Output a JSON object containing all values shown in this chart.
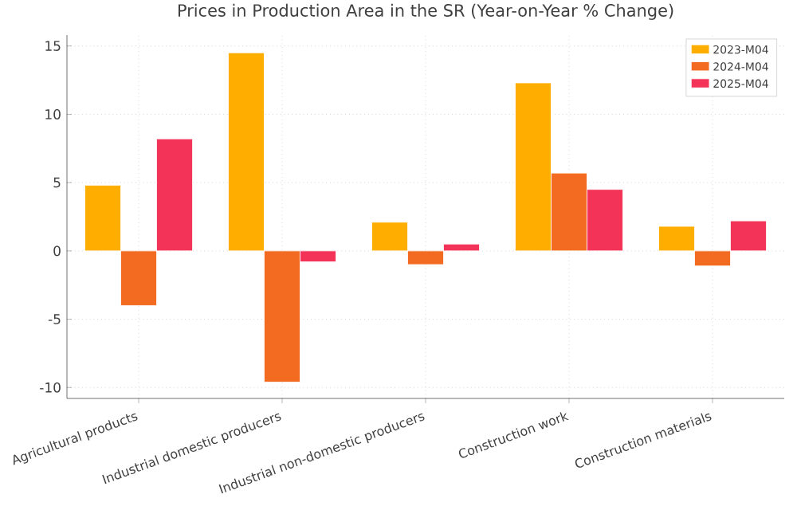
{
  "chart_data": {
    "type": "bar",
    "title": "Prices in Production Area in the SR (Year-on-Year % Change)",
    "categories": [
      "Agricultural products",
      "Industrial domestic producers",
      "Industrial non-domestic producers",
      "Construction work",
      "Construction materials"
    ],
    "series": [
      {
        "name": "2023-M04",
        "color": "#ffae00",
        "values": [
          4.8,
          14.5,
          2.1,
          12.3,
          1.8
        ]
      },
      {
        "name": "2024-M04",
        "color": "#f26b21",
        "values": [
          -4.0,
          -9.6,
          -1.0,
          5.7,
          -1.1
        ]
      },
      {
        "name": "2025-M04",
        "color": "#f43358",
        "values": [
          8.2,
          -0.8,
          0.5,
          4.5,
          2.2
        ]
      }
    ],
    "ylim": [
      -10.8,
      15.8
    ],
    "yticks": [
      -10,
      -5,
      0,
      5,
      10,
      15
    ],
    "grid": true,
    "legend": "top right"
  }
}
